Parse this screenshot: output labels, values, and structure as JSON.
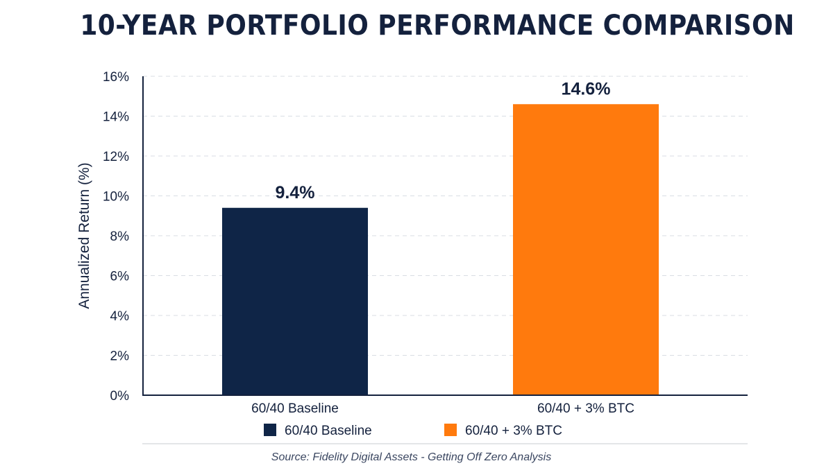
{
  "chart_data": {
    "type": "bar",
    "title": "10-YEAR PORTFOLIO PERFORMANCE COMPARISON",
    "categories": [
      "60/40 Baseline",
      "60/40 + 3% BTC"
    ],
    "values": [
      9.4,
      14.6
    ],
    "value_labels": [
      "9.4%",
      "14.6%"
    ],
    "colors": [
      "#0f2547",
      "#ff7a0d"
    ],
    "ylabel": "Annualized Return (%)",
    "ylim": [
      0,
      16
    ],
    "yticks": [
      0,
      2,
      4,
      6,
      8,
      10,
      12,
      14,
      16
    ],
    "ytick_labels": [
      "0%",
      "2%",
      "4%",
      "6%",
      "8%",
      "10%",
      "12%",
      "14%",
      "16%"
    ],
    "grid": true,
    "legend": {
      "placement": "bottom",
      "entries": [
        {
          "label": "60/40 Baseline",
          "color": "#0f2547"
        },
        {
          "label": "60/40 + 3% BTC",
          "color": "#ff7a0d"
        }
      ]
    }
  },
  "source": "Source: Fidelity Digital Assets - Getting Off Zero Analysis"
}
